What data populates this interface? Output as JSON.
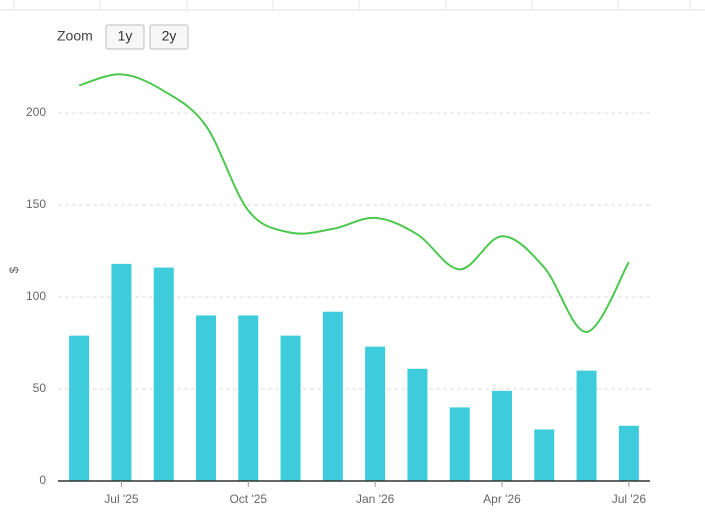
{
  "chart_data": {
    "type": "bar",
    "zoom_label": "Zoom",
    "zoom_buttons": [
      "1y",
      "2y"
    ],
    "y_axis_label": "$",
    "categories": [
      null,
      "Jul '25",
      null,
      null,
      "Oct '25",
      null,
      null,
      "Jan '26",
      null,
      null,
      "Apr '26",
      null,
      null,
      "Jul '26"
    ],
    "series": [
      {
        "type": "column",
        "color": "#3ecbdc",
        "values": [
          79,
          118,
          116,
          90,
          90,
          79,
          92,
          73,
          61,
          40,
          49,
          28,
          60,
          30
        ]
      },
      {
        "type": "spline",
        "color": "#4cc84f",
        "values": [
          215,
          221,
          212,
          193,
          147,
          135,
          137,
          143,
          134,
          115,
          133,
          116,
          81,
          119
        ]
      }
    ],
    "ylim": [
      0,
      250
    ],
    "yticks": [
      0,
      50,
      100,
      150,
      200
    ],
    "grid": true
  }
}
